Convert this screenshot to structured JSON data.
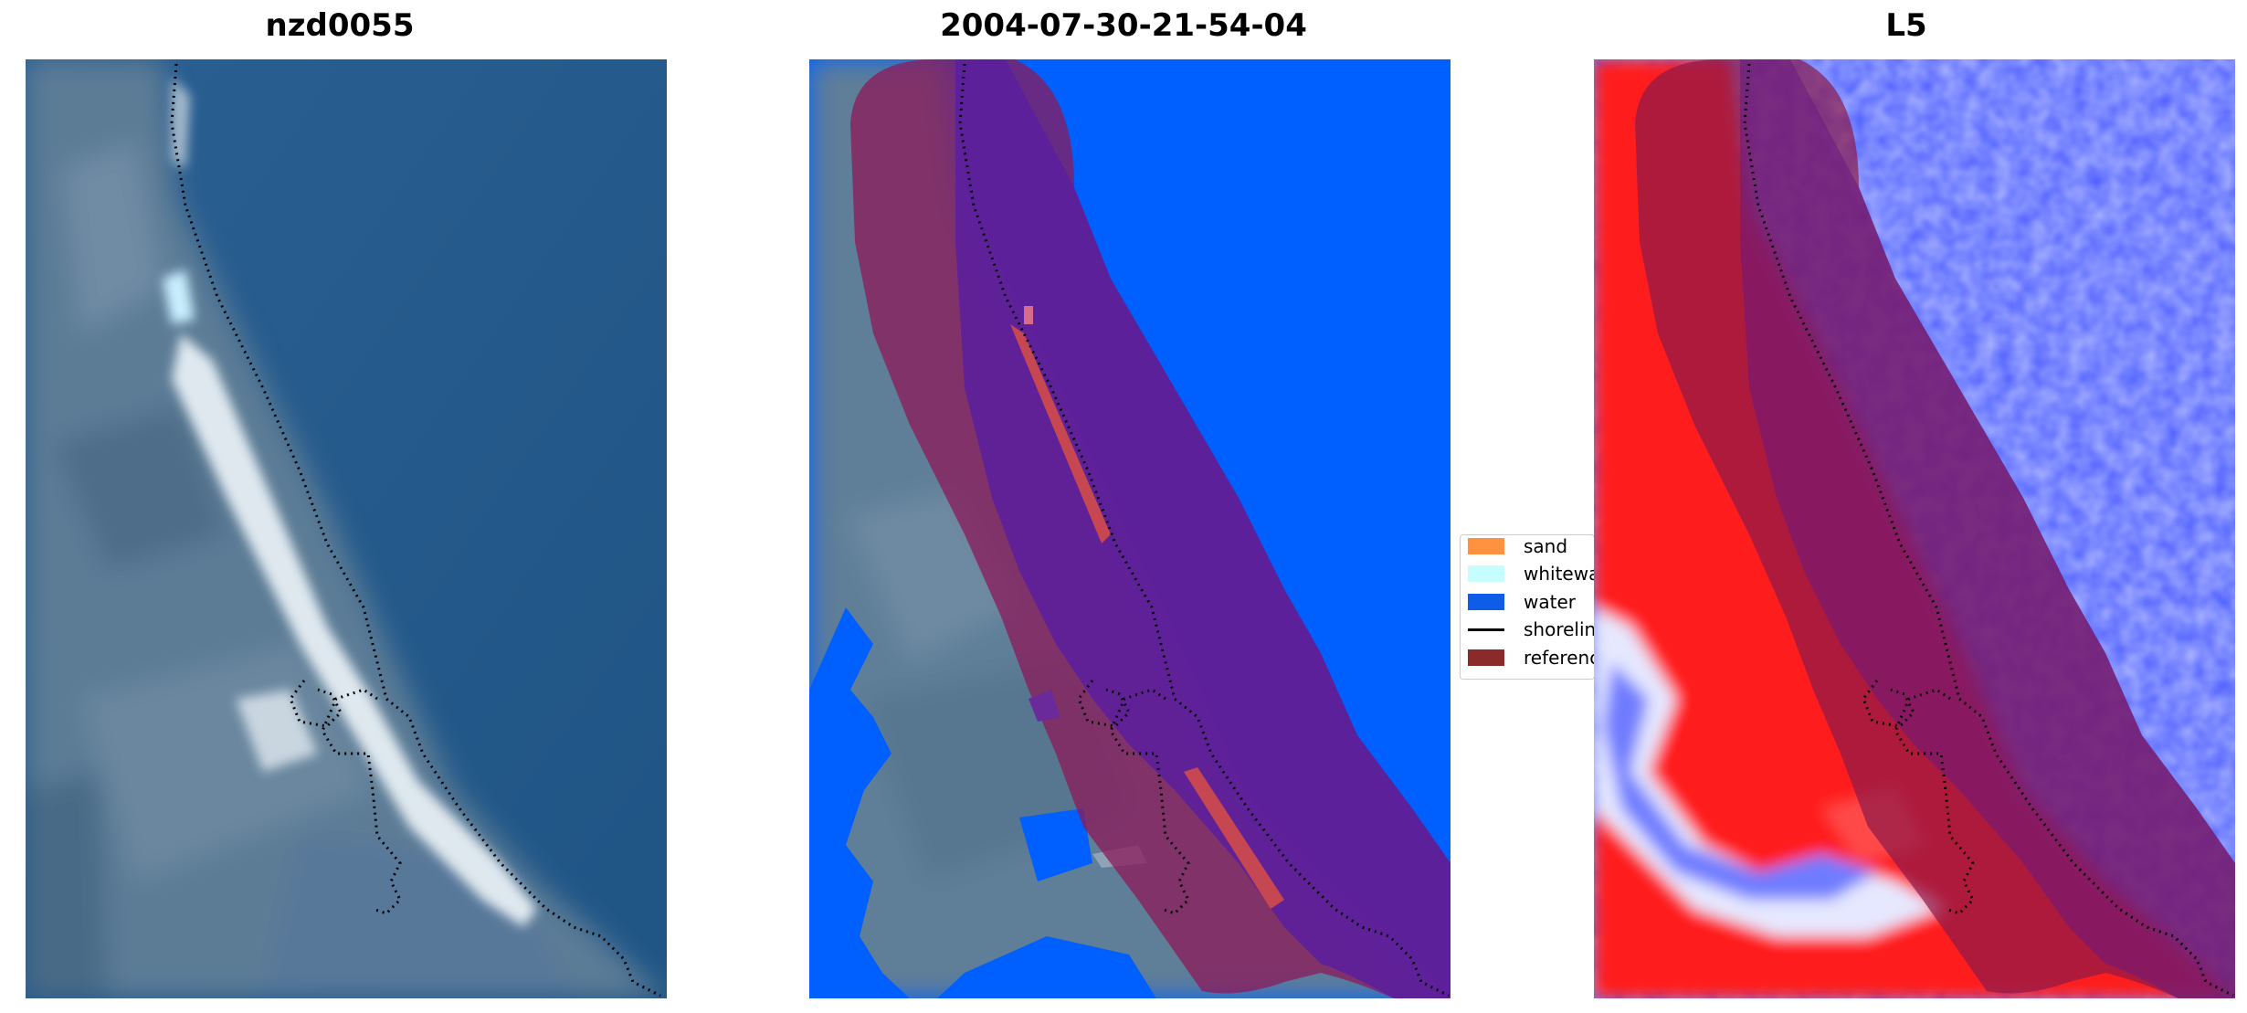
{
  "panels": [
    {
      "title": "nzd0055"
    },
    {
      "title": "2004-07-30-21-54-04"
    },
    {
      "title": "L5"
    }
  ],
  "legend": {
    "items": [
      {
        "label": "sand",
        "color": "#ff9240",
        "kind": "patch"
      },
      {
        "label": "whitewater",
        "color": "#c8fdfd",
        "kind": "patch"
      },
      {
        "label": "water",
        "color": "#0f5ce8",
        "kind": "patch"
      },
      {
        "label": "shoreline",
        "color": "#000000",
        "kind": "line"
      },
      {
        "label": "reference shoreline buffer",
        "color": "#8b2a2a",
        "kind": "patch"
      }
    ]
  },
  "colors": {
    "ocean": "#235a8a",
    "land": "#5f7e98",
    "beach": "#dbe6ee",
    "water_class": "#0060ff",
    "buffer": "#8b1a1a",
    "index_positive": "#ff1a1a",
    "index_negative": "#3a4fff"
  }
}
